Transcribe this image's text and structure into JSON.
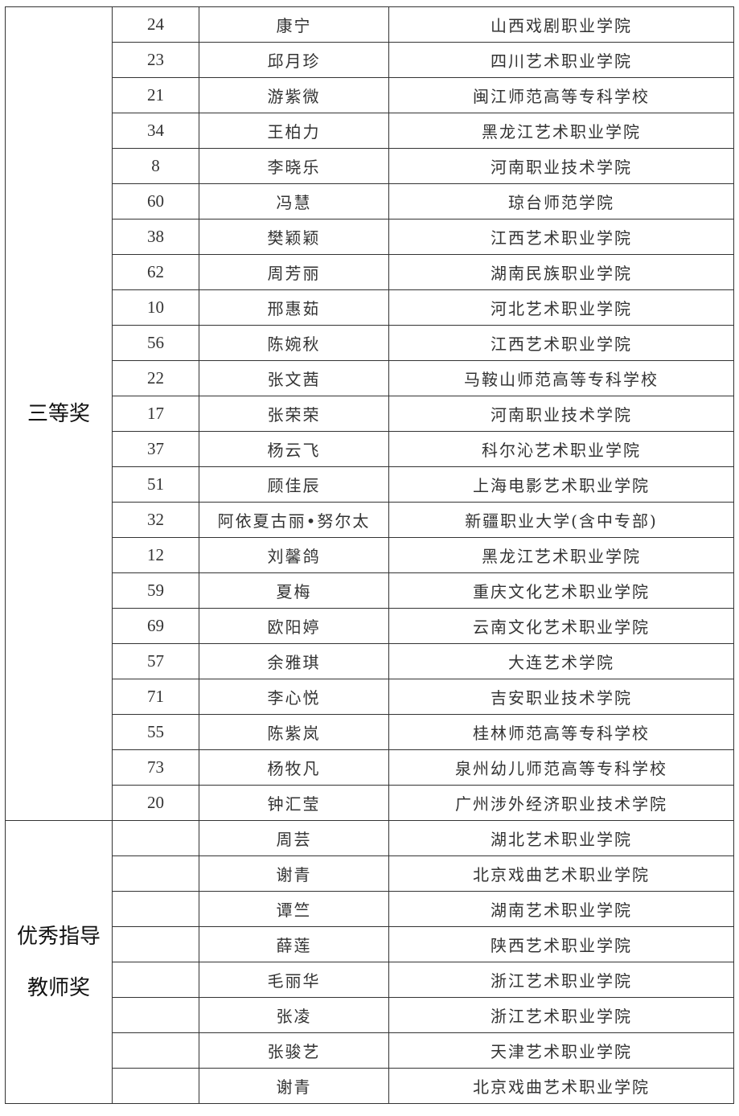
{
  "sections": [
    {
      "category_lines": [
        "三等奖"
      ],
      "rows": [
        {
          "no": "24",
          "name": "康宁",
          "school": "山西戏剧职业学院"
        },
        {
          "no": "23",
          "name": "邱月珍",
          "school": "四川艺术职业学院"
        },
        {
          "no": "21",
          "name": "游紫微",
          "school": "闽江师范高等专科学校"
        },
        {
          "no": "34",
          "name": "王柏力",
          "school": "黑龙江艺术职业学院"
        },
        {
          "no": "8",
          "name": "李晓乐",
          "school": "河南职业技术学院"
        },
        {
          "no": "60",
          "name": "冯慧",
          "school": "琼台师范学院"
        },
        {
          "no": "38",
          "name": "樊颖颖",
          "school": "江西艺术职业学院"
        },
        {
          "no": "62",
          "name": "周芳丽",
          "school": "湖南民族职业学院"
        },
        {
          "no": "10",
          "name": "邢惠茹",
          "school": "河北艺术职业学院"
        },
        {
          "no": "56",
          "name": "陈婉秋",
          "school": "江西艺术职业学院"
        },
        {
          "no": "22",
          "name": "张文茜",
          "school": "马鞍山师范高等专科学校"
        },
        {
          "no": "17",
          "name": "张荣荣",
          "school": "河南职业技术学院"
        },
        {
          "no": "37",
          "name": "杨云飞",
          "school": "科尔沁艺术职业学院"
        },
        {
          "no": "51",
          "name": "顾佳辰",
          "school": "上海电影艺术职业学院"
        },
        {
          "no": "32",
          "name": "阿依夏古丽•努尔太",
          "school": "新疆职业大学(含中专部)"
        },
        {
          "no": "12",
          "name": "刘馨鸽",
          "school": "黑龙江艺术职业学院"
        },
        {
          "no": "59",
          "name": "夏梅",
          "school": "重庆文化艺术职业学院"
        },
        {
          "no": "69",
          "name": "欧阳婷",
          "school": "云南文化艺术职业学院"
        },
        {
          "no": "57",
          "name": "余雅琪",
          "school": "大连艺术学院"
        },
        {
          "no": "71",
          "name": "李心悦",
          "school": "吉安职业技术学院"
        },
        {
          "no": "55",
          "name": "陈紫岚",
          "school": "桂林师范高等专科学校"
        },
        {
          "no": "73",
          "name": "杨牧凡",
          "school": "泉州幼儿师范高等专科学校"
        },
        {
          "no": "20",
          "name": "钟汇莹",
          "school": "广州涉外经济职业技术学院"
        }
      ]
    },
    {
      "category_lines": [
        "优秀指导",
        "教师奖"
      ],
      "rows": [
        {
          "no": "",
          "name": "周芸",
          "school": "湖北艺术职业学院"
        },
        {
          "no": "",
          "name": "谢青",
          "school": "北京戏曲艺术职业学院"
        },
        {
          "no": "",
          "name": "谭竺",
          "school": "湖南艺术职业学院"
        },
        {
          "no": "",
          "name": "薛莲",
          "school": "陕西艺术职业学院"
        },
        {
          "no": "",
          "name": "毛丽华",
          "school": "浙江艺术职业学院"
        },
        {
          "no": "",
          "name": "张凌",
          "school": "浙江艺术职业学院"
        },
        {
          "no": "",
          "name": "张骏艺",
          "school": "天津艺术职业学院"
        },
        {
          "no": "",
          "name": "谢青",
          "school": "北京戏曲艺术职业学院"
        }
      ]
    }
  ]
}
